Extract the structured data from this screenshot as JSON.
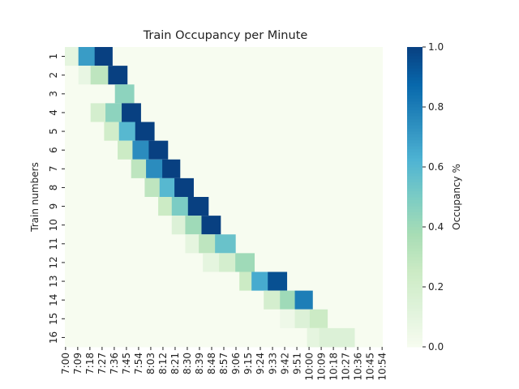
{
  "chart_data": {
    "type": "heatmap",
    "title": "Train Occupancy per Minute",
    "ylabel": "Train numbers",
    "colorbar_label": "Occupancy %",
    "colors": [
      "#f7fcf0",
      "#e0f3db",
      "#ccebc5",
      "#a8ddb5",
      "#7bccc4",
      "#4eb3d3",
      "#2b8cbe",
      "#0868ac",
      "#084081"
    ],
    "clim": [
      0,
      1
    ],
    "cticks": [
      {
        "value": 0,
        "label": "0.0"
      },
      {
        "value": 0.2,
        "label": "0.2"
      },
      {
        "value": 0.4,
        "label": "0.4"
      },
      {
        "value": 0.6,
        "label": "0.6"
      },
      {
        "value": 0.8,
        "label": "0.8"
      },
      {
        "value": 1,
        "label": "1.0"
      }
    ],
    "background_value": 0,
    "xlim": [
      0,
      235
    ],
    "xticks": [
      {
        "value": 0,
        "label": "7:00"
      },
      {
        "value": 9,
        "label": "7:09"
      },
      {
        "value": 18,
        "label": "7:18"
      },
      {
        "value": 27,
        "label": "7:27"
      },
      {
        "value": 36,
        "label": "7:36"
      },
      {
        "value": 45,
        "label": "7:45"
      },
      {
        "value": 54,
        "label": "7:54"
      },
      {
        "value": 63,
        "label": "8:03"
      },
      {
        "value": 72,
        "label": "8:12"
      },
      {
        "value": 81,
        "label": "8:21"
      },
      {
        "value": 90,
        "label": "8:30"
      },
      {
        "value": 99,
        "label": "8:39"
      },
      {
        "value": 108,
        "label": "8:48"
      },
      {
        "value": 117,
        "label": "8:57"
      },
      {
        "value": 126,
        "label": "9:06"
      },
      {
        "value": 135,
        "label": "9:15"
      },
      {
        "value": 144,
        "label": "9:24"
      },
      {
        "value": 153,
        "label": "9:33"
      },
      {
        "value": 162,
        "label": "9:42"
      },
      {
        "value": 171,
        "label": "9:51"
      },
      {
        "value": 180,
        "label": "10:00"
      },
      {
        "value": 189,
        "label": "10:09"
      },
      {
        "value": 198,
        "label": "10:18"
      },
      {
        "value": 207,
        "label": "10:27"
      },
      {
        "value": 216,
        "label": "10:36"
      },
      {
        "value": 225,
        "label": "10:45"
      },
      {
        "value": 234,
        "label": "10:54"
      }
    ],
    "rows": [
      {
        "name": "1",
        "segments": [
          {
            "x": [
              0,
              10
            ],
            "value": 0.1
          },
          {
            "x": [
              10,
              22
            ],
            "value": 0.7
          },
          {
            "x": [
              22,
              35
            ],
            "value": 1.0
          }
        ]
      },
      {
        "name": "2",
        "segments": [
          {
            "x": [
              10,
              19
            ],
            "value": 0.08
          },
          {
            "x": [
              19,
              32
            ],
            "value": 0.3
          },
          {
            "x": [
              32,
              46
            ],
            "value": 1.0
          }
        ]
      },
      {
        "name": "3",
        "segments": [
          {
            "x": [
              37,
              51
            ],
            "value": 0.45
          }
        ]
      },
      {
        "name": "4",
        "segments": [
          {
            "x": [
              19,
              30
            ],
            "value": 0.2
          },
          {
            "x": [
              30,
              42
            ],
            "value": 0.45
          },
          {
            "x": [
              42,
              56
            ],
            "value": 1.0
          }
        ]
      },
      {
        "name": "5",
        "segments": [
          {
            "x": [
              29,
              40
            ],
            "value": 0.22
          },
          {
            "x": [
              40,
              52
            ],
            "value": 0.6
          },
          {
            "x": [
              52,
              66
            ],
            "value": 1.0
          }
        ]
      },
      {
        "name": "6",
        "segments": [
          {
            "x": [
              39,
              50
            ],
            "value": 0.25
          },
          {
            "x": [
              50,
              62
            ],
            "value": 0.75
          },
          {
            "x": [
              62,
              76
            ],
            "value": 1.0
          }
        ]
      },
      {
        "name": "7",
        "segments": [
          {
            "x": [
              49,
              60
            ],
            "value": 0.3
          },
          {
            "x": [
              60,
              72
            ],
            "value": 0.75
          },
          {
            "x": [
              72,
              85
            ],
            "value": 1.0
          }
        ]
      },
      {
        "name": "8",
        "segments": [
          {
            "x": [
              59,
              70
            ],
            "value": 0.3
          },
          {
            "x": [
              70,
              81
            ],
            "value": 0.6
          },
          {
            "x": [
              81,
              95
            ],
            "value": 1.0
          }
        ]
      },
      {
        "name": "9",
        "segments": [
          {
            "x": [
              69,
              79
            ],
            "value": 0.25
          },
          {
            "x": [
              79,
              91
            ],
            "value": 0.5
          },
          {
            "x": [
              91,
              106
            ],
            "value": 1.0
          }
        ]
      },
      {
        "name": "10",
        "segments": [
          {
            "x": [
              79,
              89
            ],
            "value": 0.15
          },
          {
            "x": [
              89,
              101
            ],
            "value": 0.4
          },
          {
            "x": [
              101,
              115
            ],
            "value": 1.0
          }
        ]
      },
      {
        "name": "11",
        "segments": [
          {
            "x": [
              89,
              99
            ],
            "value": 0.1
          },
          {
            "x": [
              99,
              111
            ],
            "value": 0.3
          },
          {
            "x": [
              111,
              126
            ],
            "value": 0.55
          }
        ]
      },
      {
        "name": "12",
        "segments": [
          {
            "x": [
              102,
              114
            ],
            "value": 0.1
          },
          {
            "x": [
              114,
              126
            ],
            "value": 0.2
          },
          {
            "x": [
              126,
              140
            ],
            "value": 0.4
          }
        ]
      },
      {
        "name": "13",
        "segments": [
          {
            "x": [
              129,
              138
            ],
            "value": 0.25
          },
          {
            "x": [
              138,
              150
            ],
            "value": 0.65
          },
          {
            "x": [
              150,
              164
            ],
            "value": 0.95
          }
        ]
      },
      {
        "name": "14",
        "segments": [
          {
            "x": [
              147,
              159
            ],
            "value": 0.2
          },
          {
            "x": [
              159,
              170
            ],
            "value": 0.4
          },
          {
            "x": [
              170,
              183
            ],
            "value": 0.8
          }
        ]
      },
      {
        "name": "15",
        "segments": [
          {
            "x": [
              159,
              170
            ],
            "value": 0.05
          },
          {
            "x": [
              170,
              181
            ],
            "value": 0.15
          },
          {
            "x": [
              181,
              194
            ],
            "value": 0.25
          }
        ]
      },
      {
        "name": "16",
        "segments": [
          {
            "x": [
              179,
              188
            ],
            "value": 0.1
          },
          {
            "x": [
              188,
              214
            ],
            "value": 0.15
          }
        ]
      }
    ]
  }
}
